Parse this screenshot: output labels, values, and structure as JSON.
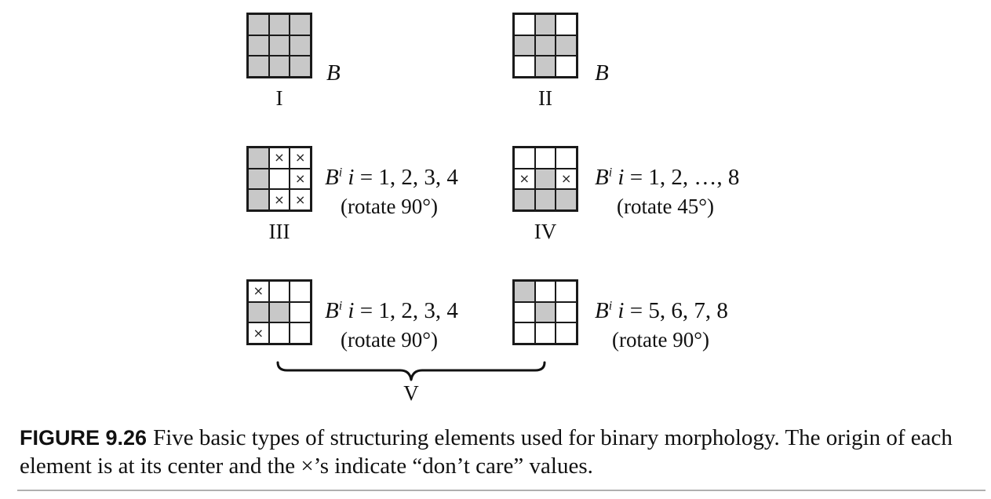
{
  "elements": {
    "I": {
      "label": "I",
      "symbol": "B",
      "cells": [
        "1",
        "1",
        "1",
        "1",
        "1",
        "1",
        "1",
        "1",
        "1"
      ]
    },
    "II": {
      "label": "II",
      "symbol": "B",
      "cells": [
        "0",
        "1",
        "0",
        "1",
        "1",
        "1",
        "0",
        "1",
        "0"
      ]
    },
    "III": {
      "label": "III",
      "symbol": "B",
      "sup": "i",
      "index_var": "i",
      "index_values": " = 1, 2, 3, 4",
      "rotate": "(rotate 90°)",
      "cells": [
        "1",
        "x",
        "x",
        "1",
        "0",
        "x",
        "1",
        "x",
        "x"
      ]
    },
    "IV": {
      "label": "IV",
      "symbol": "B",
      "sup": "i",
      "index_var": "i",
      "index_values": " = 1, 2, …, 8",
      "rotate": "(rotate 45°)",
      "cells": [
        "0",
        "0",
        "0",
        "x",
        "1",
        "x",
        "1",
        "1",
        "1"
      ]
    },
    "V_left": {
      "symbol": "B",
      "sup": "i",
      "index_var": "i",
      "index_values": " = 1, 2, 3, 4",
      "rotate": "(rotate 90°)",
      "cells": [
        "x",
        "0",
        "0",
        "1",
        "1",
        "0",
        "x",
        "0",
        "0"
      ]
    },
    "V_right": {
      "symbol": "B",
      "sup": "i",
      "index_var": "i",
      "index_values": " = 5, 6, 7, 8",
      "rotate": "(rotate 90°)",
      "cells": [
        "1",
        "0",
        "0",
        "0",
        "1",
        "0",
        "0",
        "0",
        "0"
      ]
    },
    "V_label": "V"
  },
  "dont_care_glyph": "×",
  "colors": {
    "filled": "#c8c8c8",
    "empty": "#ffffff",
    "line": "#1a1a1a"
  },
  "caption": {
    "figure_label": "FIGURE 9.26",
    "text": "Five basic types of structuring elements used for binary morphology. The origin of each element is at its center and the ×’s indicate “don’t care” values."
  }
}
